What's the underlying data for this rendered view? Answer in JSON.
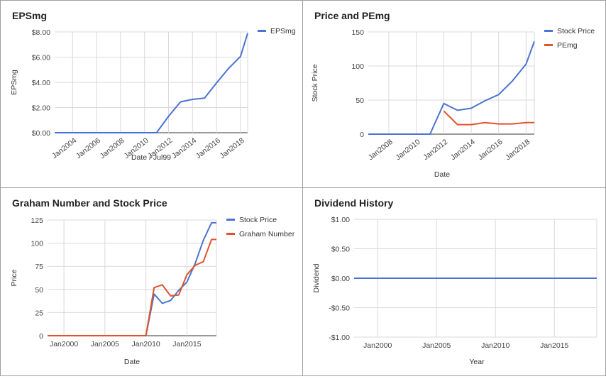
{
  "chart_data": [
    {
      "type": "line",
      "title": "EPSmg",
      "xlabel": "Date / Jul99",
      "ylabel": "EPSmg",
      "x_ticks": [
        "Jan2004",
        "Jan2006",
        "Jan2008",
        "Jan2010",
        "Jan2012",
        "Jan2014",
        "Jan2016",
        "Jan2018"
      ],
      "y_ticks": [
        "$0.00",
        "$2.00",
        "$4.00",
        "$6.00",
        "$8.00"
      ],
      "xlim": [
        2002.5,
        2018.6
      ],
      "ylim": [
        0,
        8
      ],
      "legend": "top-right",
      "colors": [
        "#4a74d1"
      ],
      "series": [
        {
          "name": "EPSmg",
          "x": [
            2002.5,
            2004,
            2006,
            2008,
            2010,
            2011,
            2012,
            2013,
            2014,
            2015,
            2016,
            2017,
            2018,
            2018.6
          ],
          "y": [
            0,
            0,
            0,
            0,
            0,
            0,
            1.3,
            2.45,
            2.65,
            2.75,
            3.95,
            5.1,
            6.05,
            7.9
          ]
        }
      ]
    },
    {
      "type": "line",
      "title": "Price and PEmg",
      "xlabel": "Date",
      "ylabel": "Stock Price",
      "x_ticks": [
        "Jan2008",
        "Jan2010",
        "Jan2012",
        "Jan2014",
        "Jan2016",
        "Jan2018"
      ],
      "y_ticks": [
        "0",
        "50",
        "100",
        "150"
      ],
      "xlim": [
        2006.5,
        2018.6
      ],
      "ylim": [
        0,
        150
      ],
      "legend": "top-right",
      "colors": [
        "#4a74d1",
        "#e0532c"
      ],
      "series": [
        {
          "name": "Stock Price",
          "x": [
            2006.5,
            2008,
            2010,
            2011,
            2012,
            2013,
            2014,
            2015,
            2016,
            2017,
            2018,
            2018.6
          ],
          "y": [
            0,
            0,
            0,
            0,
            45,
            35,
            38,
            49,
            58,
            78,
            103,
            136
          ]
        },
        {
          "name": "PEmg",
          "x": [
            2012,
            2013,
            2014,
            2015,
            2016,
            2017,
            2018,
            2018.6
          ],
          "y": [
            34,
            14,
            14,
            17,
            15,
            15,
            17,
            17
          ]
        }
      ]
    },
    {
      "type": "line",
      "title": "Graham Number and Stock Price",
      "xlabel": "Date",
      "ylabel": "Price",
      "x_ticks": [
        "Jan2000",
        "Jan2005",
        "Jan2010",
        "Jan2015"
      ],
      "y_ticks": [
        "0",
        "25",
        "50",
        "75",
        "100",
        "125"
      ],
      "xlim": [
        1998,
        2018.6
      ],
      "ylim": [
        0,
        125
      ],
      "legend": "top-right",
      "colors": [
        "#4a74d1",
        "#e0532c"
      ],
      "series": [
        {
          "name": "Stock Price",
          "x": [
            1998,
            2000,
            2005,
            2010,
            2011,
            2012,
            2013,
            2014,
            2015,
            2016,
            2017,
            2018,
            2018.6
          ],
          "y": [
            0,
            0,
            0,
            0,
            45,
            35,
            38,
            49,
            58,
            78,
            103,
            122,
            122
          ]
        },
        {
          "name": "Graham Number",
          "x": [
            1998,
            2000,
            2005,
            2010,
            2011,
            2012,
            2013,
            2014,
            2015,
            2016,
            2017,
            2018,
            2018.6
          ],
          "y": [
            0,
            0,
            0,
            0,
            52,
            55,
            43,
            44,
            66,
            76,
            80,
            104,
            104
          ]
        }
      ]
    },
    {
      "type": "line",
      "title": "Dividend History",
      "xlabel": "Year",
      "ylabel": "Dividend",
      "x_ticks": [
        "Jan2000",
        "Jan2005",
        "Jan2010",
        "Jan2015"
      ],
      "y_ticks": [
        "-$1.00",
        "-$0.50",
        "$0.00",
        "$0.50",
        "$1.00"
      ],
      "xlim": [
        1998,
        2018.6
      ],
      "ylim": [
        -1,
        1
      ],
      "legend": "none",
      "colors": [
        "#4a74d1"
      ],
      "series": [
        {
          "x": [
            1998,
            2018.6
          ],
          "y": [
            0,
            0
          ]
        }
      ]
    }
  ]
}
